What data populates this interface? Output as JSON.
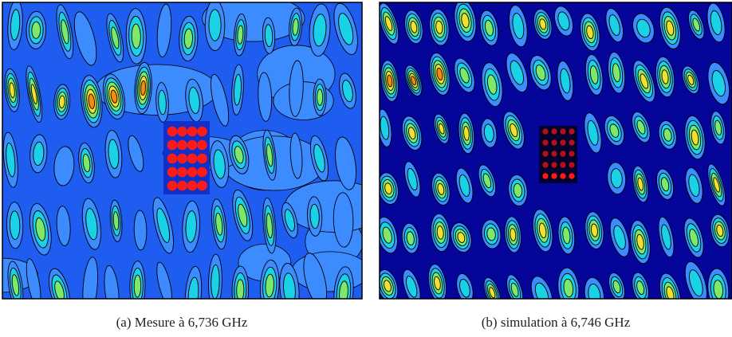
{
  "figures": [
    {
      "caption": "(a) Mesure à 6,736 GHz"
    },
    {
      "caption": "(b) simulation à 6,746 GHz"
    }
  ]
}
